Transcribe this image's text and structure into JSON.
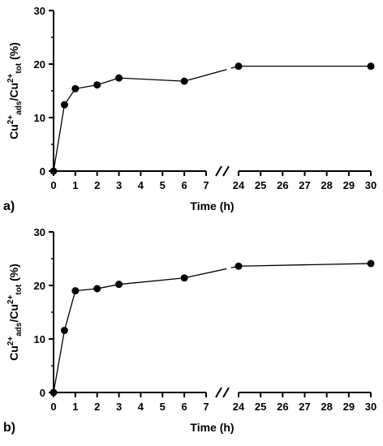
{
  "chart_data": [
    {
      "type": "line",
      "panel_label": "a)",
      "xlabel": "Time (h)",
      "ylabel": {
        "base1": "Cu",
        "sup1": "2+",
        "sub1": "ads",
        "sep": "/Cu",
        "sup2": "2+",
        "sub2": "tot",
        "tail": " (%)"
      },
      "ylim": [
        0,
        30
      ],
      "yticks": [
        0,
        10,
        20,
        30
      ],
      "x_axis_broken": true,
      "x_segments": [
        {
          "range": [
            0,
            7
          ],
          "ticks": [
            0,
            1,
            2,
            3,
            4,
            5,
            6,
            7
          ]
        },
        {
          "range": [
            24,
            30
          ],
          "ticks": [
            24,
            25,
            26,
            27,
            28,
            29,
            30
          ]
        }
      ],
      "series": [
        {
          "x": [
            0,
            0.5,
            1,
            2,
            3,
            6,
            24,
            30
          ],
          "y": [
            0,
            12.4,
            15.4,
            16.1,
            17.4,
            16.8,
            19.6,
            19.6
          ]
        }
      ],
      "grid": false
    },
    {
      "type": "line",
      "panel_label": "b)",
      "xlabel": "Time (h)",
      "ylabel": {
        "base1": "Cu",
        "sup1": "2+",
        "sub1": "ads",
        "sep": "/Cu",
        "sup2": "2+",
        "sub2": "tot",
        "tail": " (%)"
      },
      "ylim": [
        0,
        30
      ],
      "yticks": [
        0,
        10,
        20,
        30
      ],
      "x_axis_broken": true,
      "x_segments": [
        {
          "range": [
            0,
            7
          ],
          "ticks": [
            0,
            1,
            2,
            3,
            4,
            5,
            6,
            7
          ]
        },
        {
          "range": [
            24,
            30
          ],
          "ticks": [
            24,
            25,
            26,
            27,
            28,
            29,
            30
          ]
        }
      ],
      "series": [
        {
          "x": [
            0,
            0.5,
            1,
            2,
            3,
            6,
            24,
            30
          ],
          "y": [
            0,
            11.6,
            19.0,
            19.4,
            20.2,
            21.4,
            23.6,
            24.1
          ]
        }
      ],
      "grid": false
    }
  ]
}
